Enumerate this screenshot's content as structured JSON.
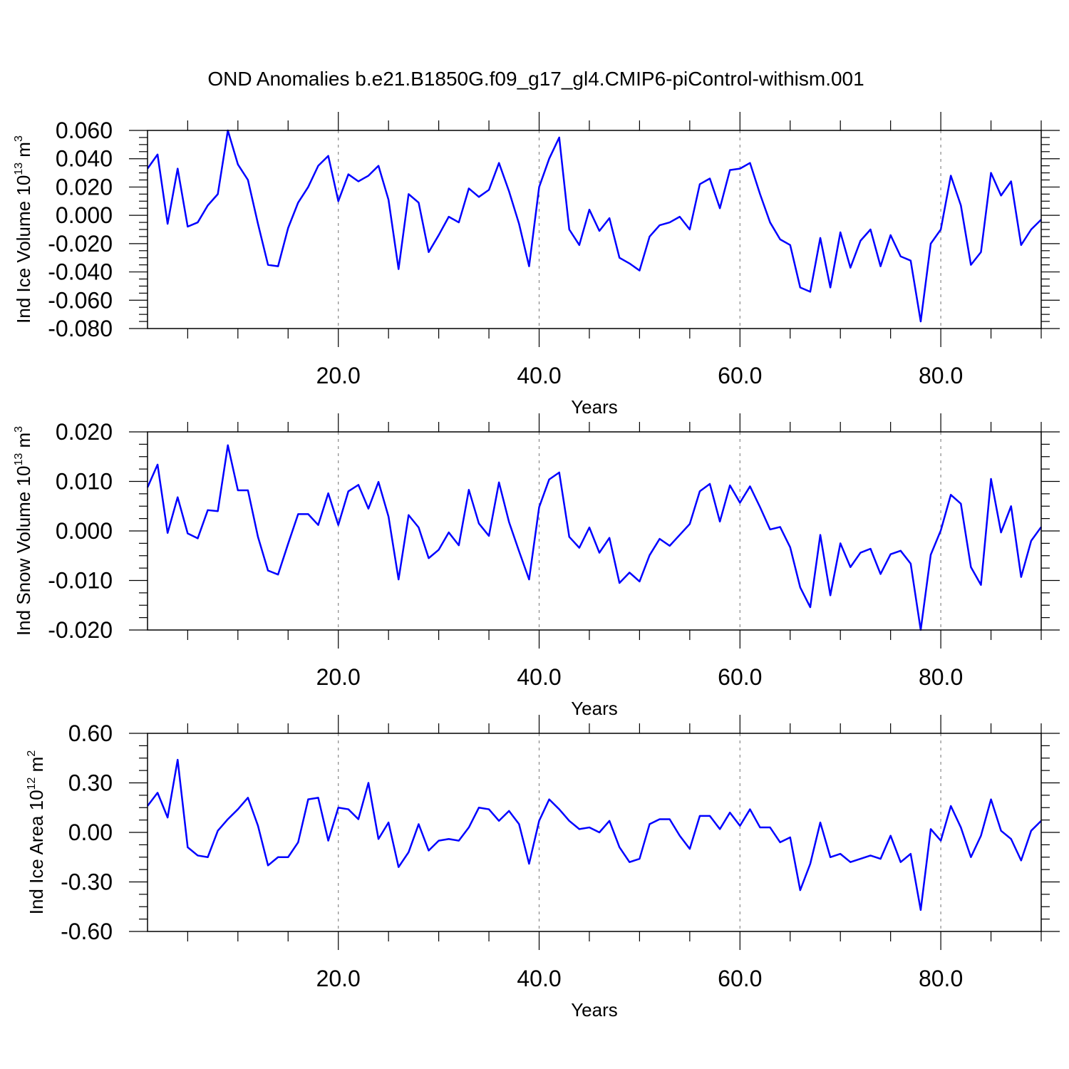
{
  "title": "OND Anomalies b.e21.B1850G.f09_g17_gl4.CMIP6-piControl-withism.001",
  "colors": {
    "series": "#0000ff",
    "frame": "#000000",
    "grid": "#888888"
  },
  "chart_data": [
    {
      "type": "line",
      "ylabel_main": "Ind Ice Volume 10",
      "ylabel_exp": "13",
      "ylabel_unit": " m",
      "ylabel_unit_exp": "3",
      "xlabel": "Years",
      "xlim": [
        1,
        90
      ],
      "ylim": [
        -0.08,
        0.06
      ],
      "x_ticks": [
        20,
        40,
        60,
        80
      ],
      "x_tick_labels": [
        "20.0",
        "40.0",
        "60.0",
        "80.0"
      ],
      "y_ticks": [
        -0.08,
        -0.06,
        -0.04,
        -0.02,
        0.0,
        0.02,
        0.04,
        0.06
      ],
      "y_tick_labels": [
        "-0.080",
        "-0.060",
        "-0.040",
        "-0.020",
        "0.000",
        "0.020",
        "0.040",
        "0.060"
      ],
      "grid_x": true,
      "series": [
        {
          "x": [
            1,
            2,
            3,
            4,
            5,
            6,
            7,
            8,
            9,
            10,
            11,
            12,
            13,
            14,
            15,
            16,
            17,
            18,
            19,
            20,
            21,
            22,
            23,
            24,
            25,
            26,
            27,
            28,
            29,
            30,
            31,
            32,
            33,
            34,
            35,
            36,
            37,
            38,
            39,
            40,
            41,
            42,
            43,
            44,
            45,
            46,
            47,
            48,
            49,
            50,
            51,
            52,
            53,
            54,
            55,
            56,
            57,
            58,
            59,
            60,
            61,
            62,
            63,
            64,
            65,
            66,
            67,
            68,
            69,
            70,
            71,
            72,
            73,
            74,
            75,
            76,
            77,
            78,
            79,
            80,
            81,
            82,
            83,
            84,
            85,
            86,
            87,
            88,
            89,
            90
          ],
          "values": [
            0.033,
            0.043,
            -0.006,
            0.033,
            -0.008,
            -0.005,
            0.007,
            0.015,
            0.06,
            0.036,
            0.025,
            -0.006,
            -0.035,
            -0.036,
            -0.009,
            0.009,
            0.02,
            0.035,
            0.042,
            0.01,
            0.029,
            0.024,
            0.028,
            0.035,
            0.011,
            -0.038,
            0.015,
            0.009,
            -0.026,
            -0.014,
            -0.001,
            -0.005,
            0.019,
            0.013,
            0.018,
            0.037,
            0.017,
            -0.006,
            -0.036,
            0.02,
            0.04,
            0.055,
            -0.01,
            -0.021,
            0.004,
            -0.011,
            -0.002,
            -0.03,
            -0.034,
            -0.039,
            -0.015,
            -0.007,
            -0.005,
            -0.001,
            -0.01,
            0.022,
            0.026,
            0.005,
            0.032,
            0.033,
            0.037,
            0.015,
            -0.005,
            -0.017,
            -0.021,
            -0.051,
            -0.054,
            -0.016,
            -0.051,
            -0.012,
            -0.037,
            -0.018,
            -0.01,
            -0.036,
            -0.014,
            -0.029,
            -0.032,
            -0.075,
            -0.02,
            -0.01,
            0.028,
            0.007,
            -0.035,
            -0.026,
            0.03,
            0.014,
            0.024,
            -0.021,
            -0.01,
            -0.003
          ]
        }
      ]
    },
    {
      "type": "line",
      "ylabel_main": "Ind Snow Volume 10",
      "ylabel_exp": "13",
      "ylabel_unit": " m",
      "ylabel_unit_exp": "3",
      "xlabel": "Years",
      "xlim": [
        1,
        90
      ],
      "ylim": [
        -0.02,
        0.02
      ],
      "x_ticks": [
        20,
        40,
        60,
        80
      ],
      "x_tick_labels": [
        "20.0",
        "40.0",
        "60.0",
        "80.0"
      ],
      "y_ticks": [
        -0.02,
        -0.01,
        0.0,
        0.01,
        0.02
      ],
      "y_tick_labels": [
        "-0.020",
        "-0.010",
        "0.000",
        "0.010",
        "0.020"
      ],
      "grid_x": true,
      "series": [
        {
          "x": [
            1,
            2,
            3,
            4,
            5,
            6,
            7,
            8,
            9,
            10,
            11,
            12,
            13,
            14,
            15,
            16,
            17,
            18,
            19,
            20,
            21,
            22,
            23,
            24,
            25,
            26,
            27,
            28,
            29,
            30,
            31,
            32,
            33,
            34,
            35,
            36,
            37,
            38,
            39,
            40,
            41,
            42,
            43,
            44,
            45,
            46,
            47,
            48,
            49,
            50,
            51,
            52,
            53,
            54,
            55,
            56,
            57,
            58,
            59,
            60,
            61,
            62,
            63,
            64,
            65,
            66,
            67,
            68,
            69,
            70,
            71,
            72,
            73,
            74,
            75,
            76,
            77,
            78,
            79,
            80,
            81,
            82,
            83,
            84,
            85,
            86,
            87,
            88,
            89,
            90
          ],
          "values": [
            0.0088,
            0.0134,
            -0.0004,
            0.0068,
            -0.0005,
            -0.0015,
            0.0042,
            0.004,
            0.0173,
            0.0082,
            0.0082,
            -0.0012,
            -0.008,
            -0.0088,
            -0.0026,
            0.0034,
            0.0034,
            0.0012,
            0.0076,
            0.0012,
            0.008,
            0.0093,
            0.0045,
            0.0099,
            0.0029,
            -0.0098,
            0.0032,
            0.0007,
            -0.0055,
            -0.0038,
            -0.0003,
            -0.0029,
            0.0083,
            0.0015,
            -0.001,
            0.0098,
            0.0018,
            -0.0041,
            -0.0098,
            0.0048,
            0.0104,
            0.0118,
            -0.0012,
            -0.0034,
            0.0007,
            -0.0044,
            -0.0014,
            -0.0105,
            -0.0084,
            -0.0102,
            -0.0049,
            -0.0016,
            -0.003,
            -0.0008,
            0.0014,
            0.008,
            0.0095,
            0.0019,
            0.0092,
            0.0057,
            0.009,
            0.0048,
            0.0003,
            0.0008,
            -0.0033,
            -0.0114,
            -0.0154,
            -0.0008,
            -0.013,
            -0.0025,
            -0.0073,
            -0.0044,
            -0.0036,
            -0.0087,
            -0.0047,
            -0.004,
            -0.0066,
            -0.02,
            -0.0048,
            0.0001,
            0.0073,
            0.0055,
            -0.0073,
            -0.0109,
            0.0105,
            -0.0003,
            0.005,
            -0.0093,
            -0.002,
            0.0008
          ]
        }
      ]
    },
    {
      "type": "line",
      "ylabel_main": "Ind Ice Area 10",
      "ylabel_exp": "12",
      "ylabel_unit": " m",
      "ylabel_unit_exp": "2",
      "xlabel": "Years",
      "xlim": [
        1,
        90
      ],
      "ylim": [
        -0.6,
        0.6
      ],
      "x_ticks": [
        20,
        40,
        60,
        80
      ],
      "x_tick_labels": [
        "20.0",
        "40.0",
        "60.0",
        "80.0"
      ],
      "y_ticks": [
        -0.6,
        -0.3,
        0.0,
        0.3,
        0.6
      ],
      "y_tick_labels": [
        "-0.60",
        "-0.30",
        "0.00",
        "0.30",
        "0.60"
      ],
      "grid_x": true,
      "series": [
        {
          "x": [
            1,
            2,
            3,
            4,
            5,
            6,
            7,
            8,
            9,
            10,
            11,
            12,
            13,
            14,
            15,
            16,
            17,
            18,
            19,
            20,
            21,
            22,
            23,
            24,
            25,
            26,
            27,
            28,
            29,
            30,
            31,
            32,
            33,
            34,
            35,
            36,
            37,
            38,
            39,
            40,
            41,
            42,
            43,
            44,
            45,
            46,
            47,
            48,
            49,
            50,
            51,
            52,
            53,
            54,
            55,
            56,
            57,
            58,
            59,
            60,
            61,
            62,
            63,
            64,
            65,
            66,
            67,
            68,
            69,
            70,
            71,
            72,
            73,
            74,
            75,
            76,
            77,
            78,
            79,
            80,
            81,
            82,
            83,
            84,
            85,
            86,
            87,
            88,
            89,
            90
          ],
          "values": [
            0.16,
            0.24,
            0.09,
            0.44,
            -0.09,
            -0.14,
            -0.15,
            0.01,
            0.08,
            0.14,
            0.21,
            0.04,
            -0.2,
            -0.15,
            -0.15,
            -0.06,
            0.2,
            0.21,
            -0.05,
            0.15,
            0.14,
            0.08,
            0.3,
            -0.04,
            0.06,
            -0.21,
            -0.12,
            0.05,
            -0.11,
            -0.05,
            -0.04,
            -0.05,
            0.03,
            0.15,
            0.14,
            0.07,
            0.13,
            0.05,
            -0.19,
            0.07,
            0.2,
            0.14,
            0.07,
            0.02,
            0.03,
            0.0,
            0.07,
            -0.09,
            -0.18,
            -0.16,
            0.05,
            0.08,
            0.08,
            -0.02,
            -0.1,
            0.1,
            0.1,
            0.02,
            0.12,
            0.04,
            0.14,
            0.03,
            0.03,
            -0.06,
            -0.03,
            -0.35,
            -0.19,
            0.06,
            -0.15,
            -0.13,
            -0.18,
            -0.16,
            -0.14,
            -0.16,
            -0.02,
            -0.18,
            -0.13,
            -0.47,
            0.02,
            -0.05,
            0.16,
            0.03,
            -0.15,
            -0.02,
            0.2,
            0.01,
            -0.04,
            -0.17,
            0.01,
            0.07
          ]
        }
      ]
    }
  ]
}
